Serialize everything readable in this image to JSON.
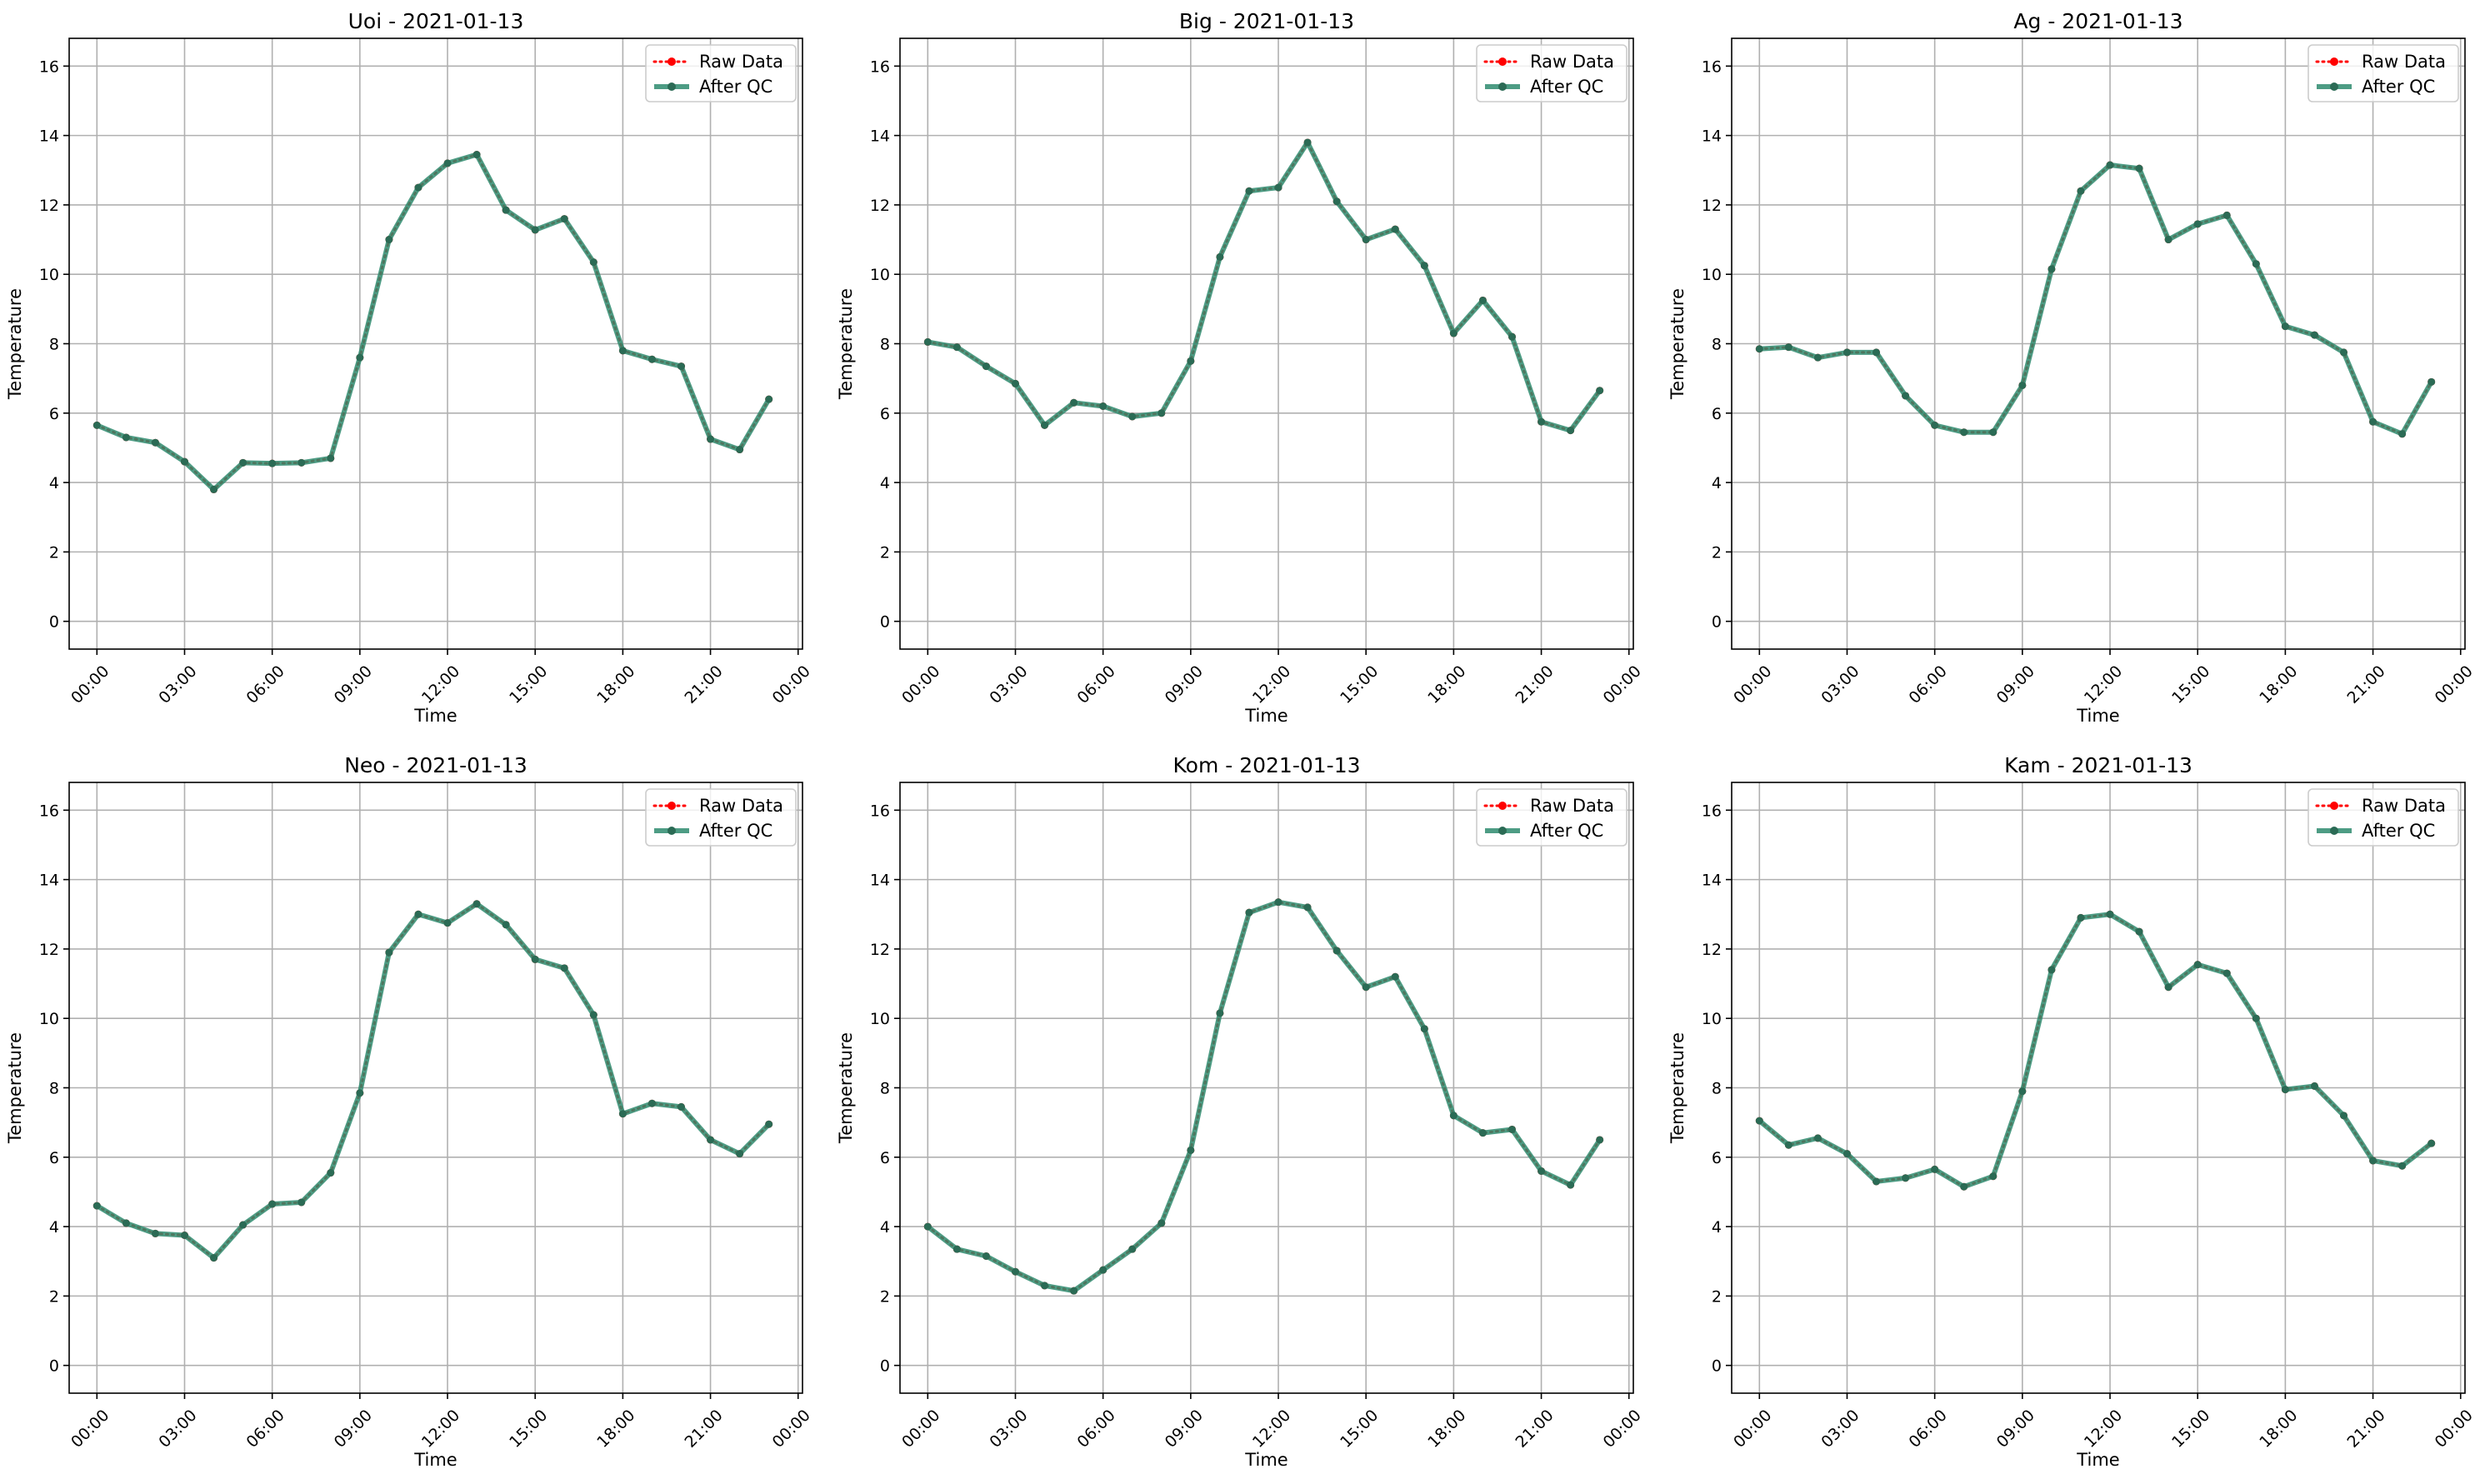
{
  "chart_data": [
    {
      "type": "line",
      "title": "Uoi - 2021-01-13",
      "xlabel": "Time",
      "ylabel": "Temperature",
      "x": [
        "00:00",
        "01:00",
        "02:00",
        "03:00",
        "04:00",
        "05:00",
        "06:00",
        "07:00",
        "08:00",
        "09:00",
        "10:00",
        "11:00",
        "12:00",
        "13:00",
        "14:00",
        "15:00",
        "16:00",
        "17:00",
        "18:00",
        "19:00",
        "20:00",
        "21:00",
        "22:00",
        "23:00"
      ],
      "xticks": [
        "00:00",
        "03:00",
        "06:00",
        "09:00",
        "12:00",
        "15:00",
        "18:00",
        "21:00",
        "00:00"
      ],
      "yticks": [
        "0",
        "2",
        "4",
        "6",
        "8",
        "10",
        "12",
        "14",
        "16"
      ],
      "xlim": [
        -0.95,
        24.15
      ],
      "ylim": [
        -0.8,
        16.8
      ],
      "grid": true,
      "legend_position": "upper right",
      "series": [
        {
          "name": "Raw Data",
          "color": "#ff0000",
          "style": "dotted",
          "values": [
            5.65,
            5.3,
            5.15,
            4.6,
            3.8,
            4.57,
            4.55,
            4.57,
            4.7,
            7.6,
            11.0,
            12.5,
            13.2,
            13.45,
            11.85,
            11.28,
            11.6,
            10.35,
            7.8,
            7.55,
            7.35,
            5.25,
            4.95,
            6.4
          ]
        },
        {
          "name": "After QC",
          "color": "#2e8b6e",
          "style": "solid",
          "values": [
            5.65,
            5.3,
            5.15,
            4.6,
            3.8,
            4.57,
            4.55,
            4.57,
            4.7,
            7.6,
            11.0,
            12.5,
            13.2,
            13.45,
            11.85,
            11.28,
            11.6,
            10.35,
            7.8,
            7.55,
            7.35,
            5.25,
            4.95,
            6.4
          ]
        }
      ]
    },
    {
      "type": "line",
      "title": "Big - 2021-01-13",
      "xlabel": "Time",
      "ylabel": "Temperature",
      "x": [
        "00:00",
        "01:00",
        "02:00",
        "03:00",
        "04:00",
        "05:00",
        "06:00",
        "07:00",
        "08:00",
        "09:00",
        "10:00",
        "11:00",
        "12:00",
        "13:00",
        "14:00",
        "15:00",
        "16:00",
        "17:00",
        "18:00",
        "19:00",
        "20:00",
        "21:00",
        "22:00",
        "23:00"
      ],
      "xticks": [
        "00:00",
        "03:00",
        "06:00",
        "09:00",
        "12:00",
        "15:00",
        "18:00",
        "21:00",
        "00:00"
      ],
      "yticks": [
        "0",
        "2",
        "4",
        "6",
        "8",
        "10",
        "12",
        "14",
        "16"
      ],
      "xlim": [
        -0.95,
        24.15
      ],
      "ylim": [
        -0.8,
        16.8
      ],
      "grid": true,
      "legend_position": "upper right",
      "series": [
        {
          "name": "Raw Data",
          "color": "#ff0000",
          "style": "dotted",
          "values": [
            8.05,
            7.9,
            7.35,
            6.85,
            5.65,
            6.3,
            6.2,
            5.9,
            6.0,
            7.5,
            10.5,
            12.4,
            12.5,
            13.8,
            12.1,
            11.0,
            11.3,
            10.25,
            8.3,
            9.25,
            8.2,
            5.75,
            5.5,
            6.65
          ]
        },
        {
          "name": "After QC",
          "color": "#2e8b6e",
          "style": "solid",
          "values": [
            8.05,
            7.9,
            7.35,
            6.85,
            5.65,
            6.3,
            6.2,
            5.9,
            6.0,
            7.5,
            10.5,
            12.4,
            12.5,
            13.8,
            12.1,
            11.0,
            11.3,
            10.25,
            8.3,
            9.25,
            8.2,
            5.75,
            5.5,
            6.65
          ]
        }
      ]
    },
    {
      "type": "line",
      "title": "Ag - 2021-01-13",
      "xlabel": "Time",
      "ylabel": "Temperature",
      "x": [
        "00:00",
        "01:00",
        "02:00",
        "03:00",
        "04:00",
        "05:00",
        "06:00",
        "07:00",
        "08:00",
        "09:00",
        "10:00",
        "11:00",
        "12:00",
        "13:00",
        "14:00",
        "15:00",
        "16:00",
        "17:00",
        "18:00",
        "19:00",
        "20:00",
        "21:00",
        "22:00",
        "23:00"
      ],
      "xticks": [
        "00:00",
        "03:00",
        "06:00",
        "09:00",
        "12:00",
        "15:00",
        "18:00",
        "21:00",
        "00:00"
      ],
      "yticks": [
        "0",
        "2",
        "4",
        "6",
        "8",
        "10",
        "12",
        "14",
        "16"
      ],
      "xlim": [
        -0.95,
        24.15
      ],
      "ylim": [
        -0.8,
        16.8
      ],
      "grid": true,
      "legend_position": "upper right",
      "series": [
        {
          "name": "Raw Data",
          "color": "#ff0000",
          "style": "dotted",
          "values": [
            7.85,
            7.9,
            7.6,
            7.75,
            7.75,
            6.5,
            5.65,
            5.45,
            5.45,
            6.8,
            10.15,
            12.4,
            13.15,
            13.05,
            11.0,
            11.45,
            11.7,
            10.3,
            8.5,
            8.25,
            7.75,
            5.75,
            5.4,
            6.9
          ]
        },
        {
          "name": "After QC",
          "color": "#2e8b6e",
          "style": "solid",
          "values": [
            7.85,
            7.9,
            7.6,
            7.75,
            7.75,
            6.5,
            5.65,
            5.45,
            5.45,
            6.8,
            10.15,
            12.4,
            13.15,
            13.05,
            11.0,
            11.45,
            11.7,
            10.3,
            8.5,
            8.25,
            7.75,
            5.75,
            5.4,
            6.9
          ]
        }
      ]
    },
    {
      "type": "line",
      "title": "Neo - 2021-01-13",
      "xlabel": "Time",
      "ylabel": "Temperature",
      "x": [
        "00:00",
        "01:00",
        "02:00",
        "03:00",
        "04:00",
        "05:00",
        "06:00",
        "07:00",
        "08:00",
        "09:00",
        "10:00",
        "11:00",
        "12:00",
        "13:00",
        "14:00",
        "15:00",
        "16:00",
        "17:00",
        "18:00",
        "19:00",
        "20:00",
        "21:00",
        "22:00",
        "23:00"
      ],
      "xticks": [
        "00:00",
        "03:00",
        "06:00",
        "09:00",
        "12:00",
        "15:00",
        "18:00",
        "21:00",
        "00:00"
      ],
      "yticks": [
        "0",
        "2",
        "4",
        "6",
        "8",
        "10",
        "12",
        "14",
        "16"
      ],
      "xlim": [
        -0.95,
        24.15
      ],
      "ylim": [
        -0.8,
        16.8
      ],
      "grid": true,
      "legend_position": "upper right",
      "series": [
        {
          "name": "Raw Data",
          "color": "#ff0000",
          "style": "dotted",
          "values": [
            4.6,
            4.1,
            3.8,
            3.75,
            3.1,
            4.05,
            4.65,
            4.7,
            5.55,
            7.85,
            11.9,
            13.0,
            12.75,
            13.3,
            12.7,
            11.7,
            11.45,
            10.1,
            7.25,
            7.55,
            7.45,
            6.5,
            6.1,
            6.95
          ]
        },
        {
          "name": "After QC",
          "color": "#2e8b6e",
          "style": "solid",
          "values": [
            4.6,
            4.1,
            3.8,
            3.75,
            3.1,
            4.05,
            4.65,
            4.7,
            5.55,
            7.85,
            11.9,
            13.0,
            12.75,
            13.3,
            12.7,
            11.7,
            11.45,
            10.1,
            7.25,
            7.55,
            7.45,
            6.5,
            6.1,
            6.95
          ]
        }
      ]
    },
    {
      "type": "line",
      "title": "Kom - 2021-01-13",
      "xlabel": "Time",
      "ylabel": "Temperature",
      "x": [
        "00:00",
        "01:00",
        "02:00",
        "03:00",
        "04:00",
        "05:00",
        "06:00",
        "07:00",
        "08:00",
        "09:00",
        "10:00",
        "11:00",
        "12:00",
        "13:00",
        "14:00",
        "15:00",
        "16:00",
        "17:00",
        "18:00",
        "19:00",
        "20:00",
        "21:00",
        "22:00",
        "23:00"
      ],
      "xticks": [
        "00:00",
        "03:00",
        "06:00",
        "09:00",
        "12:00",
        "15:00",
        "18:00",
        "21:00",
        "00:00"
      ],
      "yticks": [
        "0",
        "2",
        "4",
        "6",
        "8",
        "10",
        "12",
        "14",
        "16"
      ],
      "xlim": [
        -0.95,
        24.15
      ],
      "ylim": [
        -0.8,
        16.8
      ],
      "grid": true,
      "legend_position": "upper right",
      "series": [
        {
          "name": "Raw Data",
          "color": "#ff0000",
          "style": "dotted",
          "values": [
            4.0,
            3.35,
            3.15,
            2.7,
            2.3,
            2.15,
            2.75,
            3.35,
            4.1,
            6.2,
            10.15,
            13.05,
            13.35,
            13.2,
            11.95,
            10.9,
            11.2,
            9.7,
            7.2,
            6.7,
            6.8,
            5.6,
            5.2,
            6.5
          ]
        },
        {
          "name": "After QC",
          "color": "#2e8b6e",
          "style": "solid",
          "values": [
            4.0,
            3.35,
            3.15,
            2.7,
            2.3,
            2.15,
            2.75,
            3.35,
            4.1,
            6.2,
            10.15,
            13.05,
            13.35,
            13.2,
            11.95,
            10.9,
            11.2,
            9.7,
            7.2,
            6.7,
            6.8,
            5.6,
            5.2,
            6.5
          ]
        }
      ]
    },
    {
      "type": "line",
      "title": "Kam - 2021-01-13",
      "xlabel": "Time",
      "ylabel": "Temperature",
      "x": [
        "00:00",
        "01:00",
        "02:00",
        "03:00",
        "04:00",
        "05:00",
        "06:00",
        "07:00",
        "08:00",
        "09:00",
        "10:00",
        "11:00",
        "12:00",
        "13:00",
        "14:00",
        "15:00",
        "16:00",
        "17:00",
        "18:00",
        "19:00",
        "20:00",
        "21:00",
        "22:00",
        "23:00"
      ],
      "xticks": [
        "00:00",
        "03:00",
        "06:00",
        "09:00",
        "12:00",
        "15:00",
        "18:00",
        "21:00",
        "00:00"
      ],
      "yticks": [
        "0",
        "2",
        "4",
        "6",
        "8",
        "10",
        "12",
        "14",
        "16"
      ],
      "xlim": [
        -0.95,
        24.15
      ],
      "ylim": [
        -0.8,
        16.8
      ],
      "grid": true,
      "legend_position": "upper right",
      "series": [
        {
          "name": "Raw Data",
          "color": "#ff0000",
          "style": "dotted",
          "values": [
            7.05,
            6.35,
            6.55,
            6.1,
            5.3,
            5.4,
            5.65,
            5.15,
            5.45,
            7.9,
            11.4,
            12.9,
            13.0,
            12.5,
            10.9,
            11.55,
            11.3,
            10.0,
            7.95,
            8.05,
            7.2,
            5.9,
            5.75,
            6.4
          ]
        },
        {
          "name": "After QC",
          "color": "#2e8b6e",
          "style": "solid",
          "values": [
            7.05,
            6.35,
            6.55,
            6.1,
            5.3,
            5.4,
            5.65,
            5.15,
            5.45,
            7.9,
            11.4,
            12.9,
            13.0,
            12.5,
            10.9,
            11.55,
            11.3,
            10.0,
            7.95,
            8.05,
            7.2,
            5.9,
            5.75,
            6.4
          ]
        }
      ]
    }
  ]
}
